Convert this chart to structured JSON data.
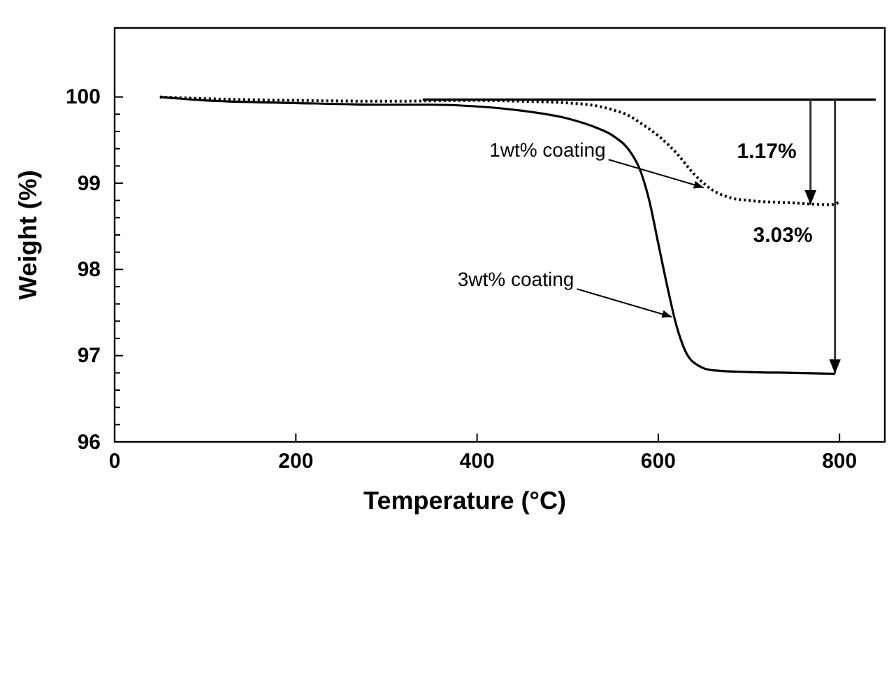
{
  "chart_data": {
    "type": "line",
    "xlabel": "Temperature (°C)",
    "ylabel": "Weight (%)",
    "xlim": [
      0,
      850
    ],
    "xticks": [
      0,
      200,
      400,
      600,
      800
    ],
    "ylim": [
      96,
      100.8
    ],
    "yticks": [
      96,
      97,
      98,
      99,
      100
    ],
    "grid": false,
    "series": [
      {
        "color": "#000000",
        "line_style": "dotted",
        "x": [
          50,
          100,
          200,
          300,
          400,
          450,
          500,
          530,
          550,
          570,
          580,
          600,
          620,
          640,
          660,
          680,
          700,
          750,
          790,
          800
        ],
        "values": [
          100.0,
          99.98,
          99.96,
          99.95,
          99.96,
          99.95,
          99.93,
          99.9,
          99.85,
          99.77,
          99.7,
          99.55,
          99.35,
          99.1,
          98.92,
          98.83,
          98.8,
          98.77,
          98.75,
          98.78
        ]
      },
      {
        "color": "#000000",
        "line_style": "solid",
        "x": [
          50,
          100,
          200,
          300,
          350,
          400,
          450,
          500,
          530,
          550,
          570,
          580,
          590,
          600,
          610,
          620,
          630,
          645,
          660,
          700,
          750,
          795
        ],
        "values": [
          100.0,
          99.96,
          99.93,
          99.91,
          99.91,
          99.89,
          99.84,
          99.75,
          99.65,
          99.55,
          99.35,
          99.15,
          98.8,
          98.3,
          97.8,
          97.35,
          97.05,
          96.88,
          96.83,
          96.81,
          96.8,
          96.79
        ]
      },
      {
        "color": "#000000",
        "line_style": "solid",
        "x": [
          340,
          840
        ],
        "values": [
          99.97,
          99.97
        ]
      }
    ],
    "annotations": [
      {
        "text": "1wt% coating",
        "x": 650,
        "y": 98.95
      },
      {
        "text": "3wt% coating",
        "x": 615,
        "y": 97.45
      },
      "1.17%",
      "3.03%"
    ]
  }
}
